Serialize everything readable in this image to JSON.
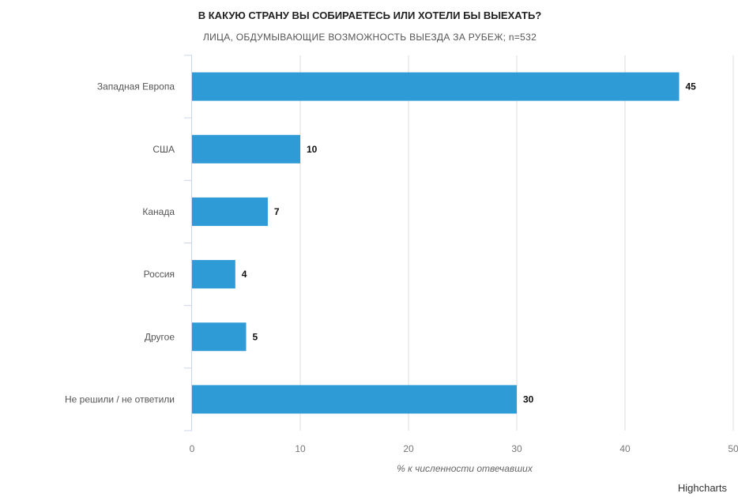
{
  "chart_data": {
    "type": "bar",
    "orientation": "horizontal",
    "title": "В КАКУЮ СТРАНУ ВЫ СОБИРАЕТЕСЬ ИЛИ ХОТЕЛИ БЫ ВЫЕХАТЬ?",
    "subtitle": "ЛИЦА, ОБДУМЫВАЮЩИЕ ВОЗМОЖНОСТЬ ВЫЕЗДА ЗА РУБЕЖ; n=532",
    "categories": [
      "Западная Европа",
      "США",
      "Канада",
      "Россия",
      "Другое",
      "Не решили / не ответили"
    ],
    "values": [
      45,
      10,
      7,
      4,
      5,
      30
    ],
    "xlabel": "% к численности отвечавших",
    "ylabel": "",
    "xlim": [
      0,
      50
    ],
    "ticks": [
      "0",
      "10",
      "20",
      "30",
      "40",
      "50"
    ],
    "grid": true,
    "data_labels": true,
    "bar_color": "#2e9ad6",
    "gridline_color": "#dddddd",
    "axis_color": "#ccd6eb",
    "credit": "Highcharts"
  }
}
